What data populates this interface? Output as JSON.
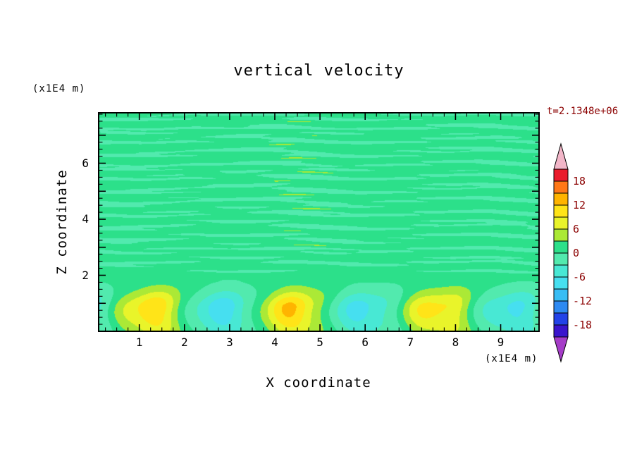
{
  "chart_data": {
    "type": "heatmap",
    "title": "vertical velocity",
    "time_label": "t=2.1348e+06",
    "axes": {
      "xlabel": "X coordinate",
      "ylabel": "Z coordinate",
      "x_unit": "(x1E4 m)",
      "y_unit": "(x1E4 m)",
      "xlim": [
        0.1,
        9.85
      ],
      "ylim": [
        0,
        7.8
      ],
      "x_ticks": [
        1,
        2,
        3,
        4,
        5,
        6,
        7,
        8,
        9
      ],
      "y_ticks": [
        2,
        4,
        6
      ],
      "minor_tick_step": 0.25,
      "grid": false
    },
    "colorbar": {
      "labels": [
        18,
        12,
        6,
        0,
        -6,
        -12,
        -18
      ],
      "band_min": -21,
      "band_max": 21,
      "band_step": 3,
      "band_colors_low_to_high": [
        "#3a14cc",
        "#2343e8",
        "#2e8af2",
        "#38bdf4",
        "#46dff0",
        "#48e8d4",
        "#52eaae",
        "#2ce08a",
        "#abe936",
        "#e9f42a",
        "#ffe418",
        "#ffb400",
        "#ff7818",
        "#ea1c2c"
      ],
      "tip_high_color": "#f2b6c8",
      "tip_low_color": "#a53cc8",
      "label_color": "#8b0000"
    },
    "field_model": {
      "description": "mostly-zero green interior with thin wavy horizontal striations; convective cells at bottom: rising yellow plumes near x=1.3,4.5,7.7 and sinking cyan plumes near x=2.9,6.1,9.3",
      "plume": {
        "wavelength": 3.2,
        "phase": 1.3,
        "pos_amp": 10.5,
        "neg_amp": 7.8,
        "z_center": 0.85,
        "z_sigma_above": 0.62,
        "z_sigma_below": 1.15,
        "lump_amp": 0.18,
        "lump_wavelength": 1.35,
        "lump_phase": 0.6,
        "skew_amp": 0.3,
        "skew_wavelength": 2.6
      },
      "striations": {
        "z_onset": 1.65,
        "z_full": 2.45,
        "bias": 0.55,
        "base_bias": 0.8,
        "modes": [
          {
            "amp": 0.95,
            "fz": 2.3,
            "phase": 0.4,
            "wob_amp": 1.6,
            "wob_wavelength": 5.1,
            "wob_phase": 0.7,
            "amp_mod": 0.45,
            "amp_wavelength": 4.3,
            "amp_phase": 1.2
          },
          {
            "amp": 0.65,
            "fz": 3.9,
            "phase": 2.1,
            "wob_amp": 1.1,
            "wob_wavelength": 3.4,
            "wob_phase": 2.3,
            "amp_mod": 0.4,
            "amp_wavelength": 6.1,
            "amp_phase": 3.3
          },
          {
            "amp": 0.5,
            "fz": 6.1,
            "phase": 4.0,
            "wob_amp": 0.8,
            "wob_wavelength": 2.2,
            "wob_phase": 4.4,
            "amp_mod": 0.5,
            "amp_wavelength": 3.2,
            "amp_phase": 5.0
          }
        ]
      }
    }
  }
}
